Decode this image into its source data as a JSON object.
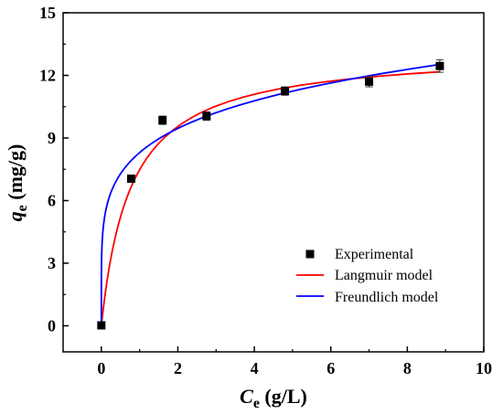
{
  "chart_data": {
    "type": "scatter",
    "xlabel": {
      "symbol": "C",
      "subscript": "e",
      "unit": " (g/L)"
    },
    "ylabel": {
      "symbol": "q",
      "subscript": "e",
      "unit": " (mg/g)"
    },
    "xlim": [
      -1,
      10
    ],
    "ylim": [
      -1.25,
      15
    ],
    "xticks": [
      "0",
      "2",
      "4",
      "6",
      "8",
      "10"
    ],
    "yticks": [
      "0",
      "3",
      "6",
      "9",
      "12",
      "15"
    ],
    "grid": false,
    "legend": {
      "placement": "bottom-right",
      "entries": [
        "Experimental",
        "Langmuir model",
        "Freundlich model"
      ]
    },
    "series": [
      {
        "name": "Experimental",
        "kind": "points",
        "color": "#000000",
        "x": [
          0,
          0.78,
          1.6,
          2.75,
          4.8,
          7.0,
          8.85
        ],
        "y": [
          0.02,
          7.05,
          9.85,
          10.05,
          11.25,
          11.7,
          12.45
        ],
        "err": [
          0.08,
          0.15,
          0.2,
          0.2,
          0.2,
          0.25,
          0.3
        ]
      },
      {
        "name": "Langmuir model",
        "kind": "curve",
        "color": "#ff0000",
        "model": "langmuir",
        "params": {
          "qmax": 13.23,
          "KL": 1.3
        },
        "x_range": [
          0,
          8.85
        ]
      },
      {
        "name": "Freundlich model",
        "kind": "curve",
        "color": "#0000ff",
        "model": "freundlich",
        "params": {
          "KF": 8.3,
          "n": 5.3
        },
        "x_range": [
          0,
          8.85
        ]
      }
    ]
  }
}
